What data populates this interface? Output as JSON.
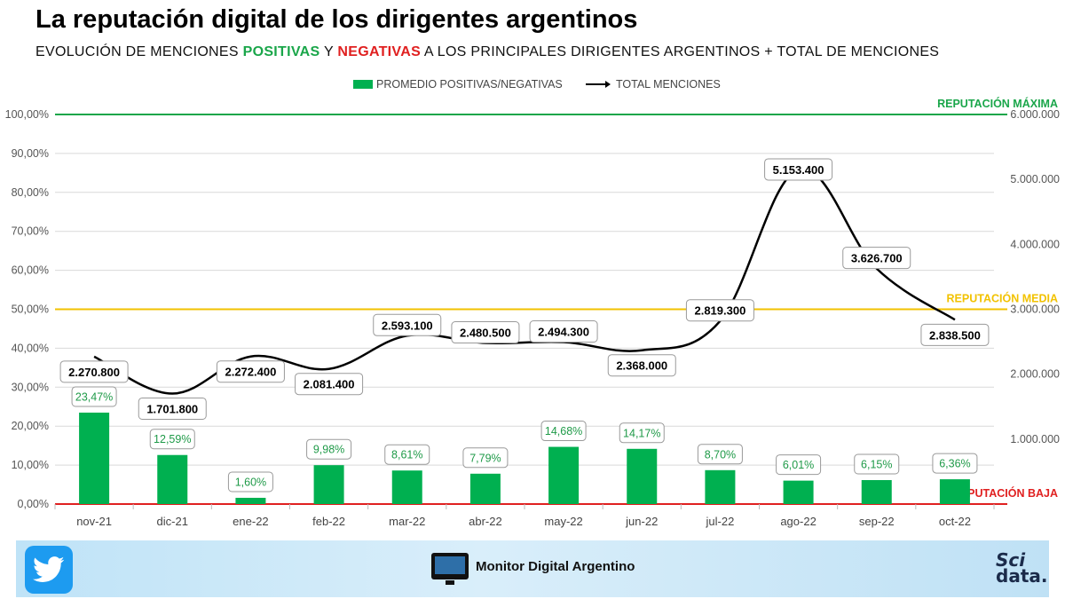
{
  "header": {
    "title": "La reputación digital de los dirigentes argentinos",
    "subtitle_part1": "EVOLUCIÓN  DE MENCIONES ",
    "subtitle_pos": "POSITIVAS",
    "subtitle_part2": " Y ",
    "subtitle_neg": "NEGATIVAS",
    "subtitle_part3": " A LOS PRINCIPALES  DIRIGENTES  ARGENTINOS + TOTAL DE MENCIONES"
  },
  "legend": {
    "bars": "PROMEDIO POSITIVAS/NEGATIVAS",
    "line": "TOTAL MENCIONES"
  },
  "footer": {
    "brand": "Monitor Digital Argentino",
    "sci": "Sci",
    "data": "data."
  },
  "colors": {
    "bar": "#00b050",
    "line": "#000000",
    "max": "#1aa64a",
    "media": "#f2c200",
    "baja": "#e02020"
  },
  "chart_data": {
    "type": "bar+line",
    "categories": [
      "nov-21",
      "dic-21",
      "ene-22",
      "feb-22",
      "mar-22",
      "abr-22",
      "may-22",
      "jun-22",
      "jul-22",
      "ago-22",
      "sep-22",
      "oct-22"
    ],
    "series": [
      {
        "name": "PROMEDIO POSITIVAS/NEGATIVAS",
        "type": "bar",
        "axis": "left",
        "values": [
          23.47,
          12.59,
          1.6,
          9.98,
          8.61,
          7.79,
          14.68,
          14.17,
          8.7,
          6.01,
          6.15,
          6.36
        ],
        "labels": [
          "23,47%",
          "12,59%",
          "1,60%",
          "9,98%",
          "8,61%",
          "7,79%",
          "14,68%",
          "14,17%",
          "8,70%",
          "6,01%",
          "6,15%",
          "6,36%"
        ]
      },
      {
        "name": "TOTAL MENCIONES",
        "type": "line",
        "axis": "right",
        "values": [
          2270800,
          1701800,
          2272400,
          2081400,
          2593100,
          2480500,
          2494300,
          2368000,
          2819300,
          5153400,
          3626700,
          2838500
        ],
        "labels": [
          "2.270.800",
          "1.701.800",
          "2.272.400",
          "2.081.400",
          "2.593.100",
          "2.480.500",
          "2.494.300",
          "2.368.000",
          "2.819.300",
          "5.153.400",
          "3.626.700",
          "2.838.500"
        ]
      }
    ],
    "y_left": {
      "range": [
        0,
        100
      ],
      "ticks": [
        "0,00%",
        "10,00%",
        "20,00%",
        "30,00%",
        "40,00%",
        "50,00%",
        "60,00%",
        "70,00%",
        "80,00%",
        "90,00%",
        "100,00%"
      ]
    },
    "y_right": {
      "range": [
        0,
        6000000
      ],
      "ticks": [
        "",
        "1.000.000",
        "2.000.000",
        "3.000.000",
        "4.000.000",
        "5.000.000",
        "6.000.000"
      ]
    },
    "reference_lines": [
      {
        "label": "REPUTACIÓN MÁXIMA",
        "value": 100,
        "color": "#1aa64a"
      },
      {
        "label": "REPUTACIÓN MEDIA",
        "value": 50,
        "color": "#f2c200"
      },
      {
        "label": "REPUTACIÓN BAJA",
        "value": 0,
        "color": "#e02020"
      }
    ],
    "grid": true,
    "legend_position": "top"
  }
}
